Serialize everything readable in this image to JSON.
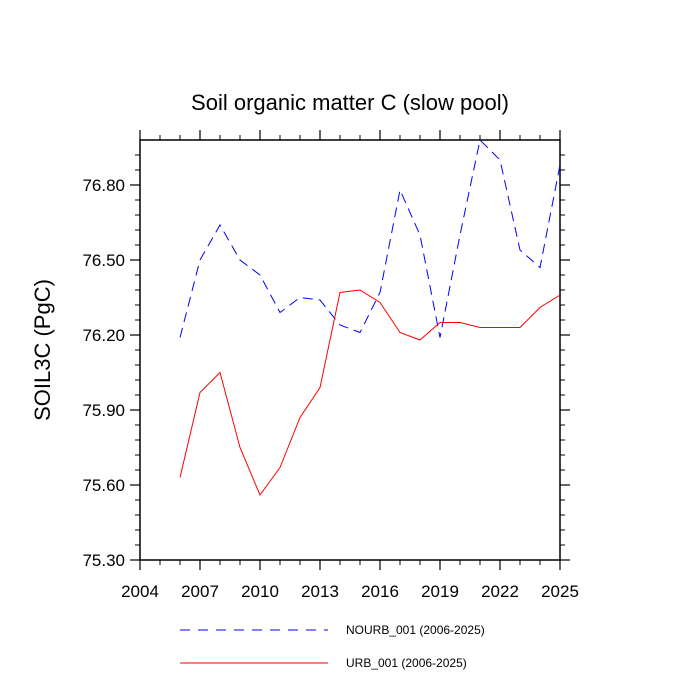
{
  "chart_data": {
    "type": "line",
    "title": "Soil organic matter C (slow pool)",
    "xlabel": "",
    "ylabel": "SOIL3C  (PgC)",
    "xlim": [
      2004,
      2025
    ],
    "ylim": [
      75.3,
      76.98
    ],
    "x_ticks": [
      2004,
      2007,
      2010,
      2013,
      2016,
      2019,
      2022,
      2025
    ],
    "y_ticks": [
      75.3,
      75.6,
      75.9,
      76.2,
      76.5,
      76.8
    ],
    "x_tick_labels": [
      "2004",
      "2007",
      "2010",
      "2013",
      "2016",
      "2019",
      "2022",
      "2025"
    ],
    "y_tick_labels": [
      "75.30",
      "75.60",
      "75.90",
      "76.20",
      "76.50",
      "76.80"
    ],
    "grid": false,
    "legend_position": "bottom",
    "x": [
      2006,
      2007,
      2008,
      2009,
      2010,
      2011,
      2012,
      2013,
      2014,
      2015,
      2016,
      2017,
      2018,
      2019,
      2020,
      2021,
      2022,
      2023,
      2024,
      2025
    ],
    "series": [
      {
        "name": "NOURB_001 (2006-2025)",
        "color": "#0000ff",
        "style": "dashed",
        "values": [
          76.19,
          76.5,
          76.64,
          76.5,
          76.44,
          76.29,
          76.35,
          76.34,
          76.24,
          76.21,
          76.37,
          76.78,
          76.6,
          76.19,
          76.6,
          76.98,
          76.9,
          76.54,
          76.47,
          76.88
        ]
      },
      {
        "name": "URB_001 (2006-2025)",
        "color": "#ff0000",
        "style": "solid",
        "values": [
          75.63,
          75.97,
          76.05,
          75.75,
          75.56,
          75.67,
          75.87,
          75.99,
          76.37,
          76.38,
          76.33,
          76.21,
          76.18,
          76.25,
          76.25,
          76.23,
          76.23,
          76.23,
          76.31,
          76.36
        ]
      }
    ]
  }
}
